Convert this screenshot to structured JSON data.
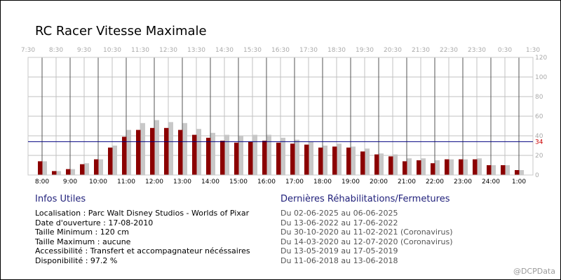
{
  "page": {
    "title": "RC Racer Vitesse Maximale",
    "watermark": "@DCPData"
  },
  "info": {
    "heading": "Infos Utiles",
    "lines": [
      "Localisation : Parc Walt Disney Studios - Worlds of Pixar",
      "Date d'ouverture : 17-08-2010",
      "Taille Minimum : 120 cm",
      "Taille Maximum : aucune",
      "Accessibilité : Transfert et accompagnateur nécéssaires",
      "Disponibilité : 97.2 %"
    ]
  },
  "rehab": {
    "heading": "Dernières Réhabilitations/Fermetures",
    "lines": [
      "Du 02-06-2025 au 06-06-2025",
      "Du 13-06-2022 au 17-06-2022",
      "Du 30-10-2020 au 11-02-2021 (Coronavirus)",
      "Du 14-03-2020 au 12-07-2020 (Coronavirus)",
      "Du 13-05-2019 au 17-05-2019",
      "Du 11-06-2018 au 13-06-2018"
    ]
  },
  "chart_data": {
    "type": "bar",
    "bottom_ticks": [
      "8:00",
      "9:00",
      "10:00",
      "11:00",
      "12:00",
      "13:00",
      "14:00",
      "15:00",
      "16:00",
      "17:00",
      "18:00",
      "19:00",
      "20:00",
      "21:00",
      "22:00",
      "23:00",
      "24:00",
      "1:00"
    ],
    "top_ticks": [
      "7:30",
      "8:30",
      "9:30",
      "10:30",
      "11:30",
      "12:30",
      "13:30",
      "14:30",
      "15:30",
      "16:30",
      "17:30",
      "18:30",
      "19:30",
      "20:30",
      "21:30",
      "22:30",
      "23:30",
      "0:30",
      "1:30"
    ],
    "y_ticks": [
      "0",
      "20",
      "40",
      "60",
      "80",
      "100",
      "120"
    ],
    "ylim": [
      0,
      120
    ],
    "reference_line": {
      "value": 34,
      "label": "34",
      "color": "#000080"
    },
    "colors": {
      "primary": "#8b0000",
      "secondary": "#c8c8c8",
      "ref_label": "#cc0000",
      "grid": "#c0c0c0",
      "hour_line": "#555555"
    },
    "series": [
      {
        "values": [
          14,
          4,
          6,
          11,
          16,
          28,
          39,
          46,
          48,
          48,
          46,
          41,
          38,
          35,
          33,
          34,
          35,
          33,
          32,
          31,
          28,
          29,
          28,
          24,
          21,
          19,
          14,
          15,
          12,
          16,
          16,
          16,
          10,
          10,
          5
        ]
      },
      {
        "values": [
          14,
          4,
          6,
          12,
          16,
          30,
          46,
          53,
          56,
          54,
          53,
          47,
          43,
          41,
          40,
          41,
          41,
          38,
          36,
          34,
          30,
          32,
          29,
          27,
          22,
          21,
          17,
          17,
          15,
          16,
          16,
          17,
          10,
          10,
          5
        ]
      }
    ]
  }
}
